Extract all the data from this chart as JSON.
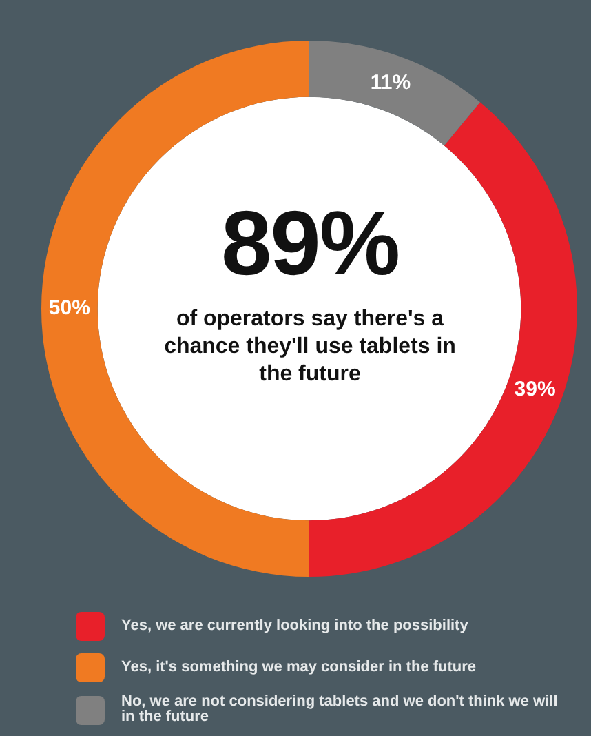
{
  "chart_data": {
    "type": "donut",
    "categories": [
      "Yes, we are currently looking into the possibility",
      "Yes, it's something we may consider in the future",
      "No, we are not considering tablets and we don't think we will in the future"
    ],
    "values": [
      39,
      50,
      11
    ],
    "colors": [
      "#e8202a",
      "#f07a22",
      "#808080"
    ],
    "value_labels": [
      "39%",
      "50%",
      "11%"
    ],
    "annotations": [
      "89%",
      "of operators say there's a chance they'll use tablets in the future"
    ],
    "legend": "bottom"
  }
}
